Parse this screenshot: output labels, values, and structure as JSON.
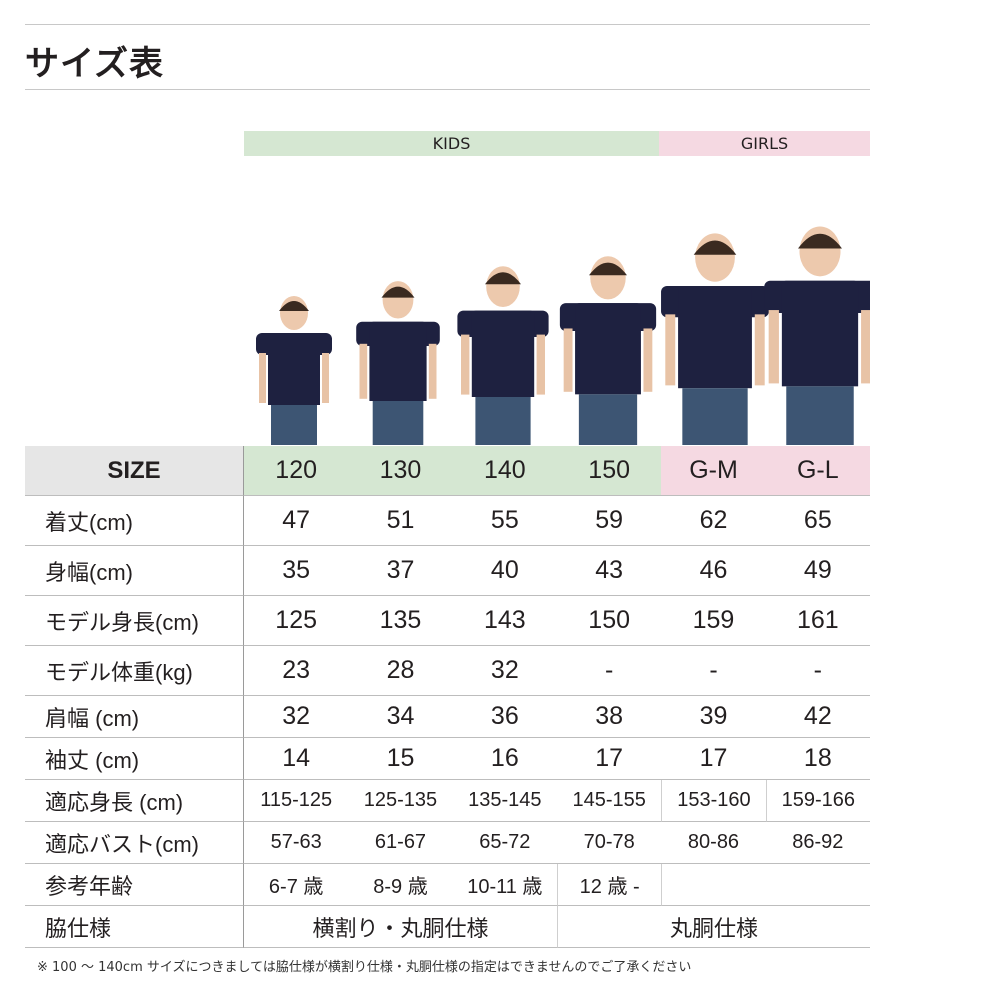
{
  "title": "サイズ表",
  "groups": {
    "kids": "KIDS",
    "girls": "GIRLS"
  },
  "colors": {
    "kids": "#d5e7d2",
    "girls": "#f5d9e2",
    "size_header": "#e6e6e6",
    "shirt": "#1e2140",
    "jeans": "#3d5573"
  },
  "header": {
    "label": "SIZE",
    "sizes": [
      "120",
      "130",
      "140",
      "150",
      "G-M",
      "G-L"
    ]
  },
  "rows": [
    {
      "label": "着丈(cm)",
      "values": [
        "47",
        "51",
        "55",
        "59",
        "62",
        "65"
      ]
    },
    {
      "label": "身幅(cm)",
      "values": [
        "35",
        "37",
        "40",
        "43",
        "46",
        "49"
      ]
    },
    {
      "label": "モデル身長(cm)",
      "values": [
        "125",
        "135",
        "143",
        "150",
        "159",
        "161"
      ]
    },
    {
      "label": "モデル体重(kg)",
      "values": [
        "23",
        "28",
        "32",
        "-",
        "-",
        "-"
      ]
    },
    {
      "label": "肩幅 (cm)",
      "values": [
        "32",
        "34",
        "36",
        "38",
        "39",
        "42"
      ]
    },
    {
      "label": "袖丈 (cm)",
      "values": [
        "14",
        "15",
        "16",
        "17",
        "17",
        "18"
      ]
    },
    {
      "label": "適応身長 (cm)",
      "values": [
        "115-125",
        "125-135",
        "135-145",
        "145-155",
        "153-160",
        "159-166"
      ]
    },
    {
      "label": "適応バスト(cm)",
      "values": [
        "57-63",
        "61-67",
        "65-72",
        "70-78",
        "80-86",
        "86-92"
      ]
    },
    {
      "label": "参考年齢",
      "values": [
        "6-7 歳",
        "8-9 歳",
        "10-11 歳",
        "12 歳 -"
      ]
    }
  ],
  "side": {
    "label": "脇仕様",
    "kids": "横割り・丸胴仕様",
    "girls": "丸胴仕様"
  },
  "note": "※ 100 ～ 140cm サイズにつきましては脇仕様が横割り仕様・丸胴仕様の指定はできませんのでご了承ください"
}
